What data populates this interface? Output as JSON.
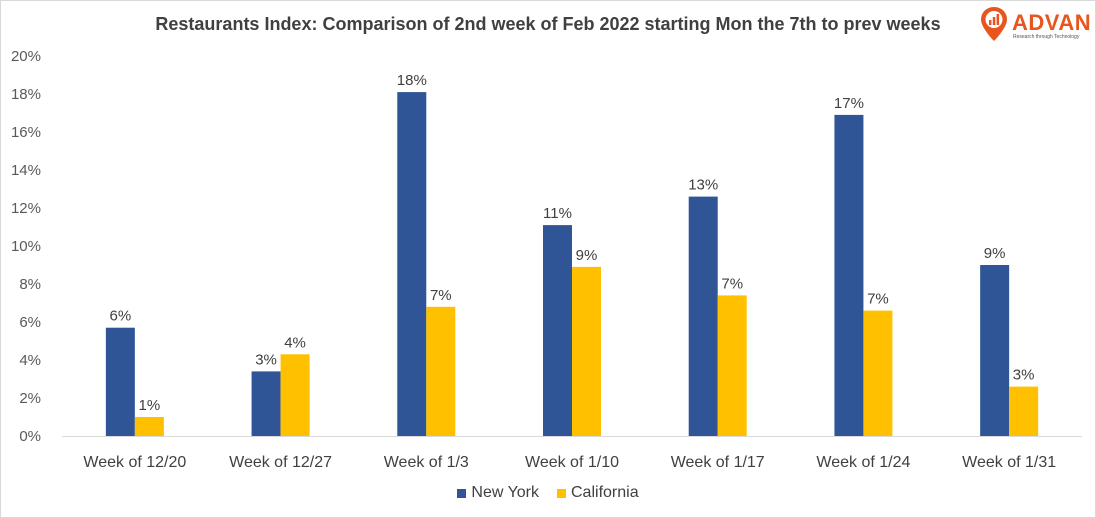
{
  "title": "Restaurants Index: Comparison of 2nd week of Feb 2022 starting Mon the 7th to prev weeks",
  "logo": {
    "name": "ADVAN",
    "tagline": "Research through Technology",
    "color": "#e8551e"
  },
  "chart_data": {
    "type": "bar",
    "title": "Restaurants Index: Comparison of 2nd week of Feb 2022 starting Mon the 7th to prev weeks",
    "categories": [
      "Week of 12/20",
      "Week of 12/27",
      "Week of 1/3",
      "Week of 1/10",
      "Week of 1/17",
      "Week of 1/24",
      "Week of 1/31"
    ],
    "series": [
      {
        "name": "New York",
        "color": "#2f5597",
        "values": [
          0.057,
          0.034,
          0.181,
          0.111,
          0.126,
          0.169,
          0.09
        ],
        "labels": [
          "6%",
          "3%",
          "18%",
          "11%",
          "13%",
          "17%",
          "9%"
        ]
      },
      {
        "name": "California",
        "color": "#ffc000",
        "values": [
          0.01,
          0.043,
          0.068,
          0.089,
          0.074,
          0.066,
          0.026
        ],
        "labels": [
          "1%",
          "4%",
          "7%",
          "9%",
          "7%",
          "7%",
          "3%"
        ]
      }
    ],
    "ylim": [
      0,
      0.2
    ],
    "yticks": [
      "0%",
      "2%",
      "4%",
      "6%",
      "8%",
      "10%",
      "12%",
      "14%",
      "16%",
      "18%",
      "20%"
    ],
    "grid": false,
    "legend_position": "bottom"
  }
}
